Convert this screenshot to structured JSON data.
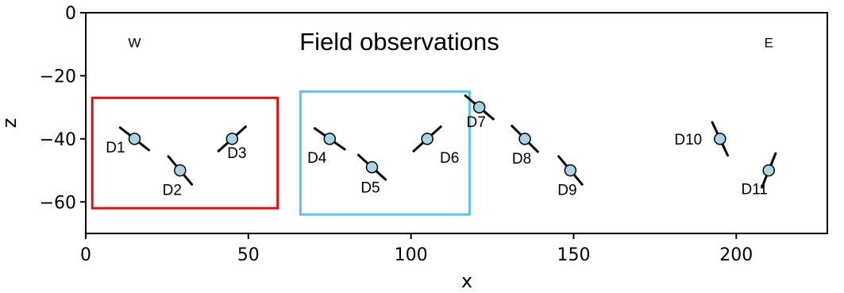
{
  "chart_data": {
    "type": "scatter",
    "title": "Field observations",
    "xlabel": "x",
    "ylabel": "z",
    "xlim": [
      0,
      228
    ],
    "ylim": [
      -70,
      0
    ],
    "xticks": [
      0,
      50,
      100,
      150,
      200
    ],
    "yticks": [
      0,
      -20,
      -40,
      -60
    ],
    "xtick_labels": [
      "0",
      "50",
      "100",
      "150",
      "200"
    ],
    "ytick_labels": [
      "0",
      "−20",
      "−40",
      "−60"
    ],
    "direction_labels": [
      {
        "text": "W",
        "x": 15,
        "z": -11
      },
      {
        "text": "E",
        "x": 210,
        "z": -11
      }
    ],
    "points": [
      {
        "name": "D1",
        "x": 15,
        "z": -40,
        "dip_deg": 38
      },
      {
        "name": "D2",
        "x": 29,
        "z": -50,
        "dip_deg": 50
      },
      {
        "name": "D3",
        "x": 45,
        "z": -40,
        "dip_deg": -42
      },
      {
        "name": "D4",
        "x": 75,
        "z": -40,
        "dip_deg": 35
      },
      {
        "name": "D5",
        "x": 88,
        "z": -49,
        "dip_deg": 42
      },
      {
        "name": "D6",
        "x": 105,
        "z": -40,
        "dip_deg": -42
      },
      {
        "name": "D7",
        "x": 121,
        "z": -30,
        "dip_deg": 40
      },
      {
        "name": "D8",
        "x": 135,
        "z": -40,
        "dip_deg": 45
      },
      {
        "name": "D9",
        "x": 149,
        "z": -50,
        "dip_deg": 50
      },
      {
        "name": "D10",
        "x": 195,
        "z": -40,
        "dip_deg": 65
      },
      {
        "name": "D11",
        "x": 210,
        "z": -50,
        "dip_deg": -68
      }
    ],
    "groups": [
      {
        "members": [
          "D1",
          "D2",
          "D3"
        ],
        "color": "#e01010",
        "xrange": [
          2,
          59
        ],
        "zrange": [
          -62,
          -27
        ]
      },
      {
        "members": [
          "D4",
          "D5",
          "D6"
        ],
        "color": "#5bc6ec",
        "xrange": [
          66,
          118
        ],
        "zrange": [
          -64,
          -25
        ]
      }
    ],
    "grid": false,
    "colors": {
      "marker_fill": "#a8d4e6",
      "marker_edge": "#000000",
      "stroke": "#000000"
    }
  }
}
